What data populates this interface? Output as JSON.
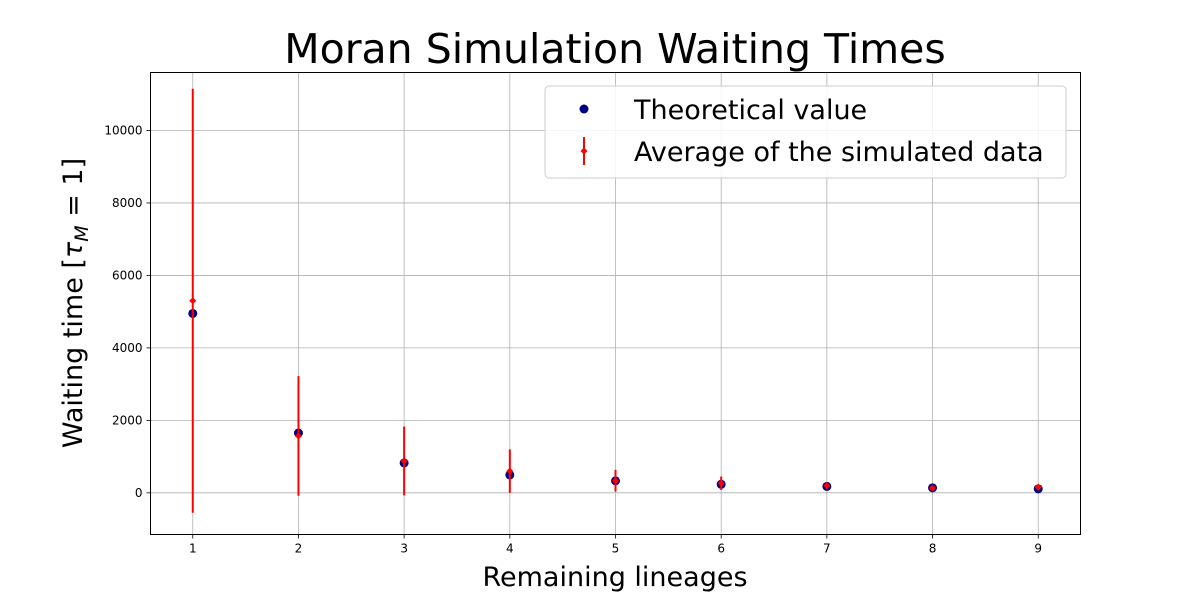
{
  "chart_data": {
    "type": "scatter",
    "title": "Moran Simulation Waiting Times",
    "xlabel": "Remaining lineages",
    "ylabel_text": "Waiting time [",
    "ylabel_tau": "τ",
    "ylabel_sub": "M",
    "ylabel_tail": " = 1]",
    "xlim": [
      0.6,
      9.4
    ],
    "ylim": [
      -1150,
      11600
    ],
    "xticks": [
      1,
      2,
      3,
      4,
      5,
      6,
      7,
      8,
      9
    ],
    "yticks": [
      0,
      2000,
      4000,
      6000,
      8000,
      10000
    ],
    "grid": true,
    "legend_position": "top-right",
    "series": [
      {
        "name": "Theoretical value",
        "color": "#000080",
        "marker": "circle",
        "x": [
          1,
          2,
          3,
          4,
          5,
          6,
          7,
          8,
          9
        ],
        "y": [
          4950,
          1650,
          825,
          495,
          330,
          236,
          177,
          138,
          110
        ]
      },
      {
        "name": "Average of the simulated data",
        "color": "#ff0000",
        "marker": "diamond-errorbar",
        "x": [
          1,
          2,
          3,
          4,
          5,
          6,
          7,
          8,
          9
        ],
        "y": [
          5300,
          1570,
          880,
          600,
          335,
          265,
          195,
          135,
          160
        ],
        "yerr": [
          5850,
          1650,
          950,
          600,
          300,
          185,
          95,
          40,
          60
        ]
      }
    ]
  }
}
